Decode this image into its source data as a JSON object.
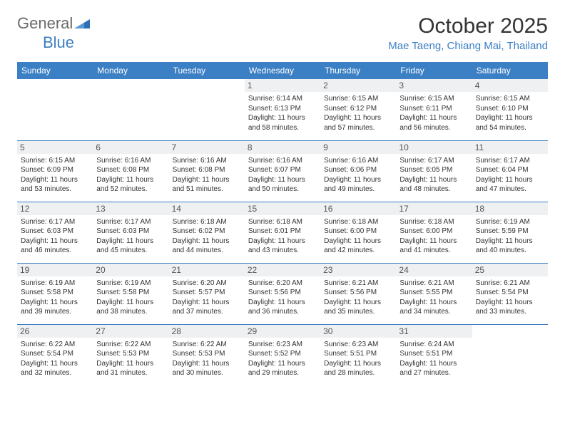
{
  "brand": {
    "part1": "General",
    "part2": "Blue"
  },
  "title": "October 2025",
  "location": "Mae Taeng, Chiang Mai, Thailand",
  "colors": {
    "accent": "#3b7fc4",
    "header_bg": "#3b7fc4",
    "header_text": "#ffffff",
    "daynum_bg": "#eef0f2",
    "text": "#333333",
    "rule": "#3b7fc4"
  },
  "fonts": {
    "title_size": 30,
    "location_size": 15,
    "header_size": 12,
    "body_size": 10
  },
  "day_headers": [
    "Sunday",
    "Monday",
    "Tuesday",
    "Wednesday",
    "Thursday",
    "Friday",
    "Saturday"
  ],
  "weeks": [
    [
      null,
      null,
      null,
      {
        "n": "1",
        "sr": "Sunrise: 6:14 AM",
        "ss": "Sunset: 6:13 PM",
        "dl": "Daylight: 11 hours and 58 minutes."
      },
      {
        "n": "2",
        "sr": "Sunrise: 6:15 AM",
        "ss": "Sunset: 6:12 PM",
        "dl": "Daylight: 11 hours and 57 minutes."
      },
      {
        "n": "3",
        "sr": "Sunrise: 6:15 AM",
        "ss": "Sunset: 6:11 PM",
        "dl": "Daylight: 11 hours and 56 minutes."
      },
      {
        "n": "4",
        "sr": "Sunrise: 6:15 AM",
        "ss": "Sunset: 6:10 PM",
        "dl": "Daylight: 11 hours and 54 minutes."
      }
    ],
    [
      {
        "n": "5",
        "sr": "Sunrise: 6:15 AM",
        "ss": "Sunset: 6:09 PM",
        "dl": "Daylight: 11 hours and 53 minutes."
      },
      {
        "n": "6",
        "sr": "Sunrise: 6:16 AM",
        "ss": "Sunset: 6:08 PM",
        "dl": "Daylight: 11 hours and 52 minutes."
      },
      {
        "n": "7",
        "sr": "Sunrise: 6:16 AM",
        "ss": "Sunset: 6:08 PM",
        "dl": "Daylight: 11 hours and 51 minutes."
      },
      {
        "n": "8",
        "sr": "Sunrise: 6:16 AM",
        "ss": "Sunset: 6:07 PM",
        "dl": "Daylight: 11 hours and 50 minutes."
      },
      {
        "n": "9",
        "sr": "Sunrise: 6:16 AM",
        "ss": "Sunset: 6:06 PM",
        "dl": "Daylight: 11 hours and 49 minutes."
      },
      {
        "n": "10",
        "sr": "Sunrise: 6:17 AM",
        "ss": "Sunset: 6:05 PM",
        "dl": "Daylight: 11 hours and 48 minutes."
      },
      {
        "n": "11",
        "sr": "Sunrise: 6:17 AM",
        "ss": "Sunset: 6:04 PM",
        "dl": "Daylight: 11 hours and 47 minutes."
      }
    ],
    [
      {
        "n": "12",
        "sr": "Sunrise: 6:17 AM",
        "ss": "Sunset: 6:03 PM",
        "dl": "Daylight: 11 hours and 46 minutes."
      },
      {
        "n": "13",
        "sr": "Sunrise: 6:17 AM",
        "ss": "Sunset: 6:03 PM",
        "dl": "Daylight: 11 hours and 45 minutes."
      },
      {
        "n": "14",
        "sr": "Sunrise: 6:18 AM",
        "ss": "Sunset: 6:02 PM",
        "dl": "Daylight: 11 hours and 44 minutes."
      },
      {
        "n": "15",
        "sr": "Sunrise: 6:18 AM",
        "ss": "Sunset: 6:01 PM",
        "dl": "Daylight: 11 hours and 43 minutes."
      },
      {
        "n": "16",
        "sr": "Sunrise: 6:18 AM",
        "ss": "Sunset: 6:00 PM",
        "dl": "Daylight: 11 hours and 42 minutes."
      },
      {
        "n": "17",
        "sr": "Sunrise: 6:18 AM",
        "ss": "Sunset: 6:00 PM",
        "dl": "Daylight: 11 hours and 41 minutes."
      },
      {
        "n": "18",
        "sr": "Sunrise: 6:19 AM",
        "ss": "Sunset: 5:59 PM",
        "dl": "Daylight: 11 hours and 40 minutes."
      }
    ],
    [
      {
        "n": "19",
        "sr": "Sunrise: 6:19 AM",
        "ss": "Sunset: 5:58 PM",
        "dl": "Daylight: 11 hours and 39 minutes."
      },
      {
        "n": "20",
        "sr": "Sunrise: 6:19 AM",
        "ss": "Sunset: 5:58 PM",
        "dl": "Daylight: 11 hours and 38 minutes."
      },
      {
        "n": "21",
        "sr": "Sunrise: 6:20 AM",
        "ss": "Sunset: 5:57 PM",
        "dl": "Daylight: 11 hours and 37 minutes."
      },
      {
        "n": "22",
        "sr": "Sunrise: 6:20 AM",
        "ss": "Sunset: 5:56 PM",
        "dl": "Daylight: 11 hours and 36 minutes."
      },
      {
        "n": "23",
        "sr": "Sunrise: 6:21 AM",
        "ss": "Sunset: 5:56 PM",
        "dl": "Daylight: 11 hours and 35 minutes."
      },
      {
        "n": "24",
        "sr": "Sunrise: 6:21 AM",
        "ss": "Sunset: 5:55 PM",
        "dl": "Daylight: 11 hours and 34 minutes."
      },
      {
        "n": "25",
        "sr": "Sunrise: 6:21 AM",
        "ss": "Sunset: 5:54 PM",
        "dl": "Daylight: 11 hours and 33 minutes."
      }
    ],
    [
      {
        "n": "26",
        "sr": "Sunrise: 6:22 AM",
        "ss": "Sunset: 5:54 PM",
        "dl": "Daylight: 11 hours and 32 minutes."
      },
      {
        "n": "27",
        "sr": "Sunrise: 6:22 AM",
        "ss": "Sunset: 5:53 PM",
        "dl": "Daylight: 11 hours and 31 minutes."
      },
      {
        "n": "28",
        "sr": "Sunrise: 6:22 AM",
        "ss": "Sunset: 5:53 PM",
        "dl": "Daylight: 11 hours and 30 minutes."
      },
      {
        "n": "29",
        "sr": "Sunrise: 6:23 AM",
        "ss": "Sunset: 5:52 PM",
        "dl": "Daylight: 11 hours and 29 minutes."
      },
      {
        "n": "30",
        "sr": "Sunrise: 6:23 AM",
        "ss": "Sunset: 5:51 PM",
        "dl": "Daylight: 11 hours and 28 minutes."
      },
      {
        "n": "31",
        "sr": "Sunrise: 6:24 AM",
        "ss": "Sunset: 5:51 PM",
        "dl": "Daylight: 11 hours and 27 minutes."
      },
      null
    ]
  ]
}
